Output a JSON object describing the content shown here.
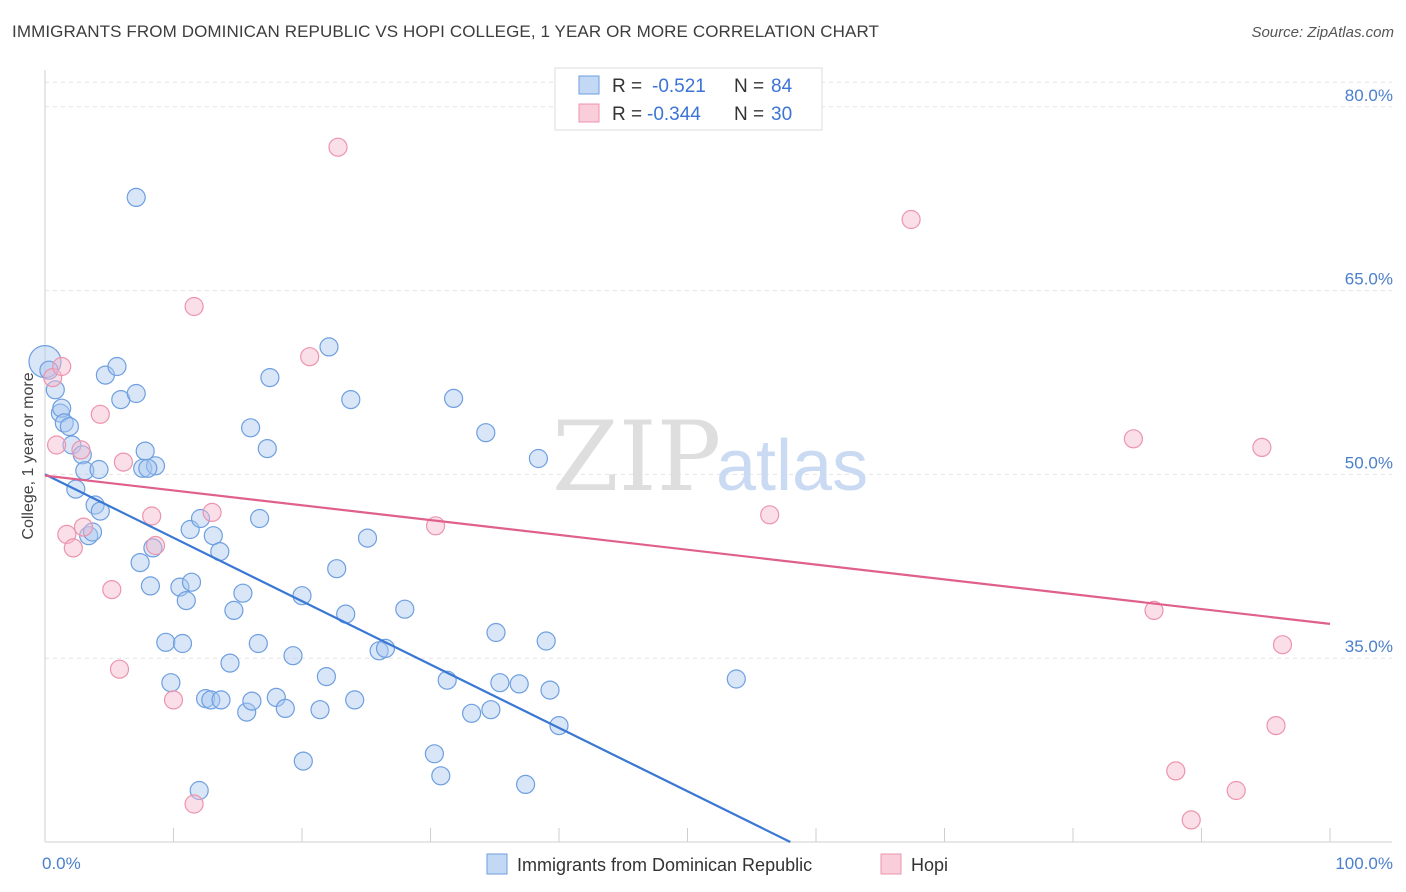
{
  "title": "IMMIGRANTS FROM DOMINICAN REPUBLIC VS HOPI COLLEGE, 1 YEAR OR MORE CORRELATION CHART",
  "source": "Source: ZipAtlas.com",
  "watermark": {
    "zip": "ZIP",
    "atlas": "atlas"
  },
  "legend": {
    "rows": [
      {
        "r_label": "R =",
        "r_value": "-0.521",
        "n_label": "N =",
        "n_value": "84",
        "color": "#a9c8f0"
      },
      {
        "r_label": "R =",
        "r_value": "-0.344",
        "n_label": "N =",
        "n_value": "30",
        "color": "#f6b8cb"
      }
    ]
  },
  "bottom_legend": {
    "items": [
      {
        "label": "Immigrants from Dominican Republic",
        "color": "#a9c8f0"
      },
      {
        "label": "Hopi",
        "color": "#f6b8cb"
      }
    ]
  },
  "chart_data": {
    "type": "scatter",
    "ylabel": "College, 1 year or more",
    "xlabel": "",
    "xlim": [
      0,
      100
    ],
    "ylim": [
      20,
      83
    ],
    "x_ticks": [
      "0.0%",
      "100.0%"
    ],
    "y_ticks": [
      {
        "value": 80,
        "label": "80.0%"
      },
      {
        "value": 65,
        "label": "65.0%"
      },
      {
        "value": 50,
        "label": "50.0%"
      },
      {
        "value": 35,
        "label": "35.0%"
      }
    ],
    "grid": true,
    "series": [
      {
        "name": "Immigrants from Dominican Republic",
        "color": "#a9c8f0",
        "stroke": "#6e9fe0",
        "trend_color": "#3a78d4",
        "trend": {
          "x1": 0,
          "y1": 50.0,
          "x2": 58.0,
          "y2": 20.0
        },
        "points": [
          [
            0.0,
            59.2
          ],
          [
            0.3,
            58.5
          ],
          [
            0.8,
            56.9
          ],
          [
            1.2,
            55.0
          ],
          [
            1.3,
            55.4
          ],
          [
            1.5,
            54.2
          ],
          [
            1.9,
            53.9
          ],
          [
            2.1,
            52.4
          ],
          [
            2.9,
            51.6
          ],
          [
            2.4,
            48.8
          ],
          [
            3.1,
            50.3
          ],
          [
            3.4,
            45.0
          ],
          [
            3.7,
            45.3
          ],
          [
            3.9,
            47.5
          ],
          [
            4.3,
            47.0
          ],
          [
            4.2,
            50.4
          ],
          [
            4.7,
            58.1
          ],
          [
            5.6,
            58.8
          ],
          [
            5.9,
            56.1
          ],
          [
            7.1,
            56.6
          ],
          [
            7.8,
            51.9
          ],
          [
            7.6,
            50.5
          ],
          [
            8.6,
            50.7
          ],
          [
            8.4,
            44.0
          ],
          [
            7.4,
            42.8
          ],
          [
            8.2,
            40.9
          ],
          [
            9.4,
            36.3
          ],
          [
            9.8,
            33.0
          ],
          [
            10.7,
            36.2
          ],
          [
            10.5,
            40.8
          ],
          [
            11.0,
            39.7
          ],
          [
            11.4,
            41.2
          ],
          [
            11.3,
            45.5
          ],
          [
            12.1,
            46.4
          ],
          [
            12.5,
            31.7
          ],
          [
            12.9,
            31.6
          ],
          [
            13.1,
            45.0
          ],
          [
            13.6,
            43.7
          ],
          [
            14.4,
            34.6
          ],
          [
            14.7,
            38.9
          ],
          [
            15.4,
            40.3
          ],
          [
            15.7,
            30.6
          ],
          [
            16.0,
            53.8
          ],
          [
            16.1,
            31.5
          ],
          [
            16.6,
            36.2
          ],
          [
            16.7,
            46.4
          ],
          [
            17.3,
            52.1
          ],
          [
            17.5,
            57.9
          ],
          [
            18.0,
            31.8
          ],
          [
            18.7,
            30.9
          ],
          [
            19.3,
            35.2
          ],
          [
            20.0,
            40.1
          ],
          [
            20.1,
            26.6
          ],
          [
            21.4,
            30.8
          ],
          [
            21.9,
            33.5
          ],
          [
            22.1,
            60.4
          ],
          [
            22.7,
            42.3
          ],
          [
            23.4,
            38.6
          ],
          [
            23.8,
            56.1
          ],
          [
            24.1,
            31.6
          ],
          [
            25.1,
            44.8
          ],
          [
            26.0,
            35.6
          ],
          [
            26.5,
            35.8
          ],
          [
            28.0,
            39.0
          ],
          [
            30.3,
            27.2
          ],
          [
            30.8,
            25.4
          ],
          [
            31.3,
            33.2
          ],
          [
            31.8,
            56.2
          ],
          [
            33.2,
            30.5
          ],
          [
            34.3,
            53.4
          ],
          [
            34.7,
            30.8
          ],
          [
            35.1,
            37.1
          ],
          [
            35.4,
            33.0
          ],
          [
            36.9,
            32.9
          ],
          [
            38.4,
            51.3
          ],
          [
            39.0,
            36.4
          ],
          [
            39.3,
            32.4
          ],
          [
            12.0,
            24.2
          ],
          [
            37.4,
            24.7
          ],
          [
            53.8,
            33.3
          ],
          [
            40.0,
            29.5
          ],
          [
            13.7,
            31.6
          ],
          [
            7.1,
            72.6
          ],
          [
            8.0,
            50.5
          ]
        ]
      },
      {
        "name": "Hopi",
        "color": "#f6b8cb",
        "stroke": "#ec94ad",
        "trend_color": "#e0608c",
        "trend": {
          "x1": 0,
          "y1": 49.9,
          "x2": 100,
          "y2": 37.8
        },
        "points": [
          [
            0.6,
            57.9
          ],
          [
            1.3,
            58.8
          ],
          [
            0.9,
            52.4
          ],
          [
            2.8,
            52.0
          ],
          [
            1.7,
            45.1
          ],
          [
            2.2,
            44.0
          ],
          [
            3.0,
            45.7
          ],
          [
            4.3,
            54.9
          ],
          [
            5.2,
            40.6
          ],
          [
            5.8,
            34.1
          ],
          [
            6.1,
            51.0
          ],
          [
            8.3,
            46.6
          ],
          [
            8.6,
            44.2
          ],
          [
            10.0,
            31.6
          ],
          [
            11.6,
            63.7
          ],
          [
            11.6,
            23.1
          ],
          [
            13.0,
            46.9
          ],
          [
            20.6,
            59.6
          ],
          [
            22.8,
            76.7
          ],
          [
            30.4,
            45.8
          ],
          [
            56.4,
            46.7
          ],
          [
            67.4,
            70.8
          ],
          [
            84.7,
            52.9
          ],
          [
            86.3,
            38.9
          ],
          [
            88.0,
            25.8
          ],
          [
            89.2,
            21.8
          ],
          [
            92.7,
            24.2
          ],
          [
            94.7,
            52.2
          ],
          [
            95.8,
            29.5
          ],
          [
            96.3,
            36.1
          ]
        ]
      }
    ]
  }
}
